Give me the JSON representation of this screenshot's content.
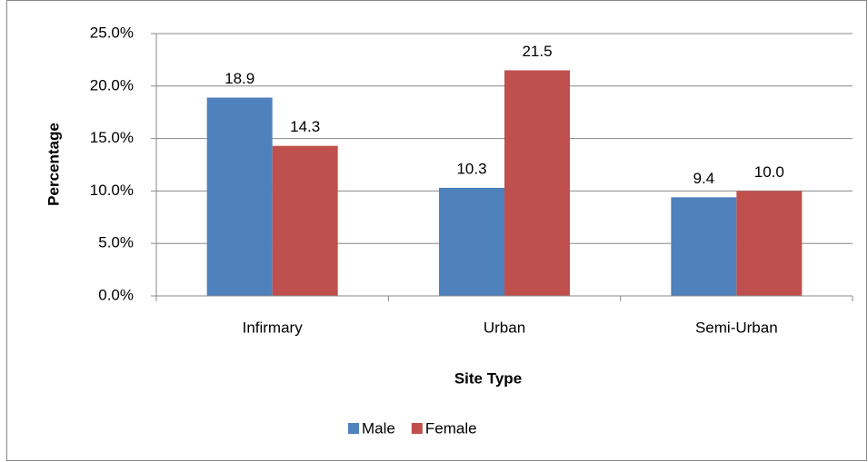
{
  "chart_data": {
    "type": "bar",
    "x_label": "Site Type",
    "y_label": "Percentage",
    "categories": [
      "Infirmary",
      "Urban",
      "Semi-Urban"
    ],
    "series": [
      {
        "name": "Male",
        "color": "#4f81bd",
        "values": [
          18.9,
          10.3,
          9.4
        ],
        "value_labels": [
          "18.9",
          "10.3",
          "9.4"
        ]
      },
      {
        "name": "Female",
        "color": "#c0504d",
        "values": [
          14.3,
          21.5,
          10.0
        ],
        "value_labels": [
          "14.3",
          "21.5",
          "10.0"
        ]
      }
    ],
    "ylim": [
      0,
      25
    ],
    "yticks": [
      {
        "value": 0,
        "label": "0.0%"
      },
      {
        "value": 5,
        "label": "5.0%"
      },
      {
        "value": 10,
        "label": "10.0%"
      },
      {
        "value": 15,
        "label": "15.0%"
      },
      {
        "value": 20,
        "label": "20.0%"
      },
      {
        "value": 25,
        "label": "25.0%"
      }
    ],
    "grid": true,
    "legend": "bottom"
  }
}
